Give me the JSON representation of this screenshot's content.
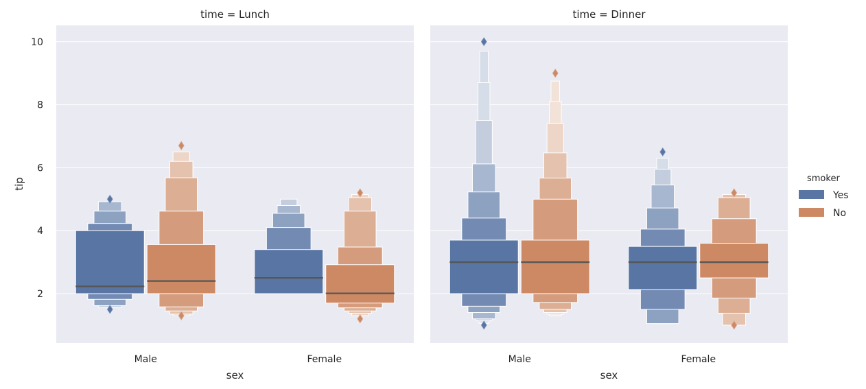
{
  "chart_data": {
    "type": "boxen",
    "facet_column": "time",
    "y_label": "tip",
    "x_label": "sex",
    "ylim": [
      0.4,
      10.5
    ],
    "y_ticks": [
      2,
      4,
      6,
      8,
      10
    ],
    "categories": [
      "Male",
      "Female"
    ],
    "grid": true,
    "legend": {
      "title": "smoker",
      "position": "right",
      "entries": [
        {
          "name": "Yes",
          "color": "#5875a4"
        },
        {
          "name": "No",
          "color": "#cc8963"
        }
      ]
    },
    "colors": {
      "Yes": "#5875a4",
      "No": "#cc8963",
      "background": "#eaeaf2",
      "grid": "#ffffff",
      "median": "#555555"
    },
    "panels": [
      {
        "title": "time = Lunch",
        "groups": [
          {
            "sex": "Male",
            "series": [
              {
                "smoker": "Yes",
                "median": 2.23,
                "outliers": [
                  1.5,
                  5.0
                ],
                "levels": [
                  [
                    2.0,
                    4.0
                  ],
                  [
                    1.82,
                    4.23
                  ],
                  [
                    1.62,
                    4.62
                  ],
                  [
                    1.58,
                    4.92
                  ]
                ]
              },
              {
                "smoker": "No",
                "median": 2.4,
                "outliers": [
                  1.3,
                  6.7
                ],
                "levels": [
                  [
                    2.0,
                    3.56
                  ],
                  [
                    1.58,
                    4.62
                  ],
                  [
                    1.45,
                    5.68
                  ],
                  [
                    1.35,
                    6.2
                  ],
                  [
                    1.3,
                    6.5
                  ]
                ]
              }
            ]
          },
          {
            "sex": "Female",
            "series": [
              {
                "smoker": "Yes",
                "median": 2.5,
                "levels": [
                  [
                    2.0,
                    3.4
                  ],
                  [
                    2.0,
                    4.1
                  ],
                  [
                    2.0,
                    4.55
                  ],
                  [
                    2.0,
                    4.8
                  ],
                  [
                    2.0,
                    5.0
                  ]
                ]
              },
              {
                "smoker": "No",
                "median": 2.01,
                "outliers": [
                  1.2,
                  5.2
                ],
                "levels": [
                  [
                    1.7,
                    2.92
                  ],
                  [
                    1.55,
                    3.48
                  ],
                  [
                    1.45,
                    4.62
                  ],
                  [
                    1.38,
                    5.05
                  ],
                  [
                    1.3,
                    5.15
                  ]
                ]
              }
            ]
          }
        ]
      },
      {
        "title": "time = Dinner",
        "groups": [
          {
            "sex": "Male",
            "series": [
              {
                "smoker": "Yes",
                "median": 3.0,
                "outliers": [
                  1.0,
                  10.0
                ],
                "levels": [
                  [
                    2.0,
                    3.7
                  ],
                  [
                    1.6,
                    4.4
                  ],
                  [
                    1.4,
                    5.23
                  ],
                  [
                    1.2,
                    6.12
                  ],
                  [
                    1.15,
                    7.5
                  ],
                  [
                    1.1,
                    8.7
                  ],
                  [
                    1.05,
                    9.7
                  ]
                ]
              },
              {
                "smoker": "No",
                "median": 3.0,
                "outliers": [
                  9.0
                ],
                "levels": [
                  [
                    2.0,
                    3.7
                  ],
                  [
                    1.72,
                    5.0
                  ],
                  [
                    1.5,
                    5.67
                  ],
                  [
                    1.4,
                    6.47
                  ],
                  [
                    1.35,
                    7.4
                  ],
                  [
                    1.3,
                    8.1
                  ],
                  [
                    1.3,
                    8.75
                  ]
                ]
              }
            ]
          },
          {
            "sex": "Female",
            "series": [
              {
                "smoker": "Yes",
                "median": 3.0,
                "outliers": [
                  6.5
                ],
                "levels": [
                  [
                    2.13,
                    3.5
                  ],
                  [
                    1.5,
                    4.05
                  ],
                  [
                    1.05,
                    4.72
                  ],
                  [
                    1.05,
                    5.45
                  ],
                  [
                    1.05,
                    5.95
                  ],
                  [
                    1.05,
                    6.3
                  ]
                ]
              },
              {
                "smoker": "No",
                "median": 3.0,
                "outliers": [
                  1.0,
                  5.2
                ],
                "levels": [
                  [
                    2.5,
                    3.6
                  ],
                  [
                    1.86,
                    4.38
                  ],
                  [
                    1.38,
                    5.05
                  ],
                  [
                    1.0,
                    5.15
                  ]
                ]
              }
            ]
          }
        ]
      }
    ]
  }
}
